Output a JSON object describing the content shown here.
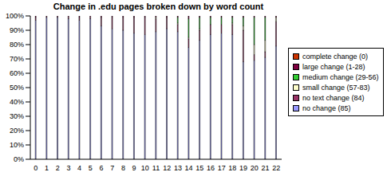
{
  "chart_data": {
    "type": "bar",
    "title": "Change in .edu pages broken down by word count",
    "categories": [
      "0",
      "1",
      "2",
      "3",
      "4",
      "5",
      "6",
      "7",
      "8",
      "9",
      "10",
      "11",
      "12",
      "13",
      "14",
      "15",
      "16",
      "17",
      "18",
      "19",
      "20",
      "21",
      "22"
    ],
    "stacked": true,
    "grid": false,
    "legend": "right",
    "ylim": [
      0,
      100
    ],
    "yticks": [
      {
        "value": 0,
        "label": "0%"
      },
      {
        "value": 10,
        "label": "10%"
      },
      {
        "value": 20,
        "label": "20%"
      },
      {
        "value": 30,
        "label": "30%"
      },
      {
        "value": 40,
        "label": "40%"
      },
      {
        "value": 50,
        "label": "50%"
      },
      {
        "value": 60,
        "label": "60%"
      },
      {
        "value": 70,
        "label": "70%"
      },
      {
        "value": 80,
        "label": "80%"
      },
      {
        "value": 90,
        "label": "90%"
      },
      {
        "value": 100,
        "label": "100%"
      }
    ],
    "series": [
      {
        "name": "no change (85)",
        "color": "#9999ff",
        "values": [
          97,
          99,
          99,
          98,
          97,
          98,
          93,
          91,
          90,
          88,
          87,
          89,
          91,
          89,
          78,
          83,
          87,
          88,
          87,
          68,
          69,
          71,
          79
        ]
      },
      {
        "name": "no text change (84)",
        "color": "#993366",
        "values": [
          2,
          1,
          1,
          2,
          2,
          2,
          6,
          8,
          9,
          11,
          12,
          9,
          8,
          5,
          6,
          7,
          7,
          6,
          7,
          22,
          4,
          4,
          17
        ]
      },
      {
        "name": "small change (57-83)",
        "color": "#ffffcc",
        "values": [
          0,
          0,
          0,
          0,
          0,
          0,
          0,
          0,
          0,
          0,
          0,
          1,
          0,
          1,
          1,
          1,
          0,
          0,
          1,
          3,
          7,
          8,
          3
        ]
      },
      {
        "name": "medium change (29-56)",
        "color": "#33cc33",
        "values": [
          0,
          0,
          0,
          0,
          0,
          0,
          0,
          0,
          0,
          0,
          0,
          0,
          0,
          4,
          13,
          8,
          5,
          5,
          4,
          6,
          19,
          16,
          0
        ]
      },
      {
        "name": "large change (1-28)",
        "color": "#800040",
        "values": [
          1,
          0,
          0,
          0,
          1,
          0,
          1,
          1,
          1,
          1,
          1,
          1,
          1,
          1,
          2,
          1,
          1,
          1,
          1,
          1,
          1,
          1,
          1
        ]
      },
      {
        "name": "complete change (0)",
        "color": "#cc3300",
        "values": [
          0,
          0,
          0,
          0,
          0,
          0,
          0,
          0,
          0,
          0,
          0,
          0,
          0,
          0,
          0,
          0,
          0,
          0,
          0,
          0,
          0,
          0,
          0
        ]
      }
    ]
  }
}
